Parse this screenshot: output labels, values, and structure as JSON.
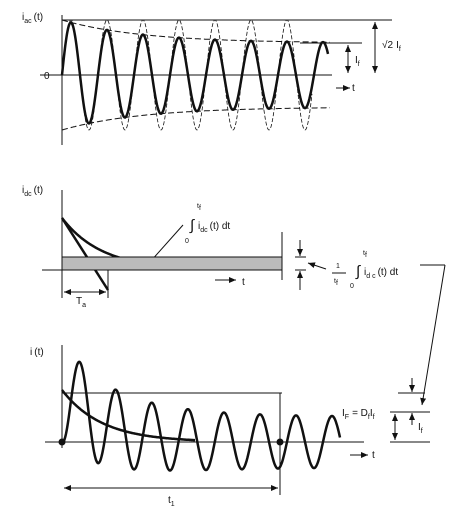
{
  "panel_ac": {
    "ylabel": {
      "symbol": "i",
      "subscript": "ac",
      "argument": "(t)"
    },
    "zero_label": "0",
    "time_label": "t",
    "rms_label": {
      "symbol": "I",
      "subscript": "f"
    },
    "peak_label": {
      "factor": "√2",
      "symbol": "I",
      "subscript": "f"
    }
  },
  "panel_dc": {
    "ylabel": {
      "symbol": "i",
      "subscript": "dc",
      "argument": "(t)"
    },
    "integral_label": {
      "sign": "∫",
      "lower": "0",
      "upper": "t",
      "upper_sub": "f",
      "body": "i",
      "body_sub": "dc",
      "rest": "(t) dt"
    },
    "time_constant_label": {
      "symbol": "T",
      "subscript": "a"
    },
    "time_label": "t",
    "average_label": {
      "numerator": "1",
      "denominator": "t",
      "denominator_sub": "f",
      "sign": "∫",
      "lower": "0",
      "upper": "t",
      "upper_sub": "f",
      "body": "i",
      "body_sub": "d c",
      "rest": "(t) dt"
    }
  },
  "panel_total": {
    "ylabel": {
      "symbol": "i",
      "argument": "(t)"
    },
    "time_label": "t",
    "equivalent_label": {
      "lhs": "I",
      "lhs_sub": "F",
      "eq": "=  D",
      "d_sub": "f",
      "rhs": "I",
      "rhs_sub": "f"
    },
    "rms_label": {
      "symbol": "I",
      "subscript": "f"
    },
    "duration_label": {
      "symbol": "t",
      "subscript": "1"
    }
  }
}
